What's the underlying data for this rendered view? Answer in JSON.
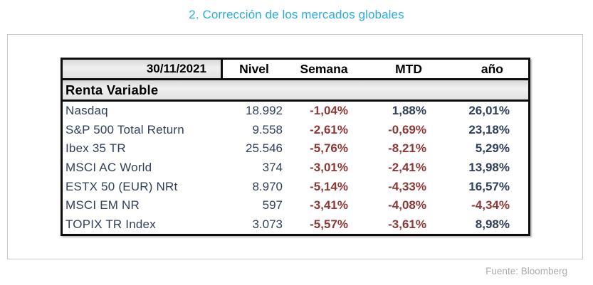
{
  "page": {
    "title": "2. Corrección de los mercados globales",
    "source_note": "Fuente: Bloomberg"
  },
  "colors": {
    "title": "#29abe2",
    "positive_text": "#31405a",
    "negative_text": "#8e3837",
    "section_bg": "#e6e6e6",
    "border": "#0d0d0d"
  },
  "table": {
    "date_header": "30/11/2021",
    "columns": {
      "nivel": "Nivel",
      "semana": "Semana",
      "mtd": "MTD",
      "ano": "año"
    },
    "section": "Renta Variable",
    "rows": [
      {
        "label": "Nasdaq",
        "nivel": "18.992",
        "semana": "-1,04%",
        "mtd": "1,88%",
        "ano": "26,01%"
      },
      {
        "label": "S&P 500 Total Return",
        "nivel": "9.558",
        "semana": "-2,61%",
        "mtd": "-0,69%",
        "ano": "23,18%"
      },
      {
        "label": "Ibex 35 TR",
        "nivel": "25.546",
        "semana": "-5,76%",
        "mtd": "-8,21%",
        "ano": "5,29%"
      },
      {
        "label": "MSCI AC World",
        "nivel": "374",
        "semana": "-3,01%",
        "mtd": "-2,41%",
        "ano": "13,98%"
      },
      {
        "label": "ESTX 50 (EUR) NRt",
        "nivel": "8.970",
        "semana": "-5,14%",
        "mtd": "-4,33%",
        "ano": "16,57%"
      },
      {
        "label": "MSCI EM NR",
        "nivel": "597",
        "semana": "-3,41%",
        "mtd": "-4,08%",
        "ano": "-4,34%"
      },
      {
        "label": "TOPIX TR Index",
        "nivel": "3.073",
        "semana": "-5,57%",
        "mtd": "-3,61%",
        "ano": "8,98%"
      }
    ]
  },
  "chart_data": {
    "type": "table",
    "title": "2. Corrección de los mercados globales",
    "date": "30/11/2021",
    "section": "Renta Variable",
    "columns": [
      "Nivel",
      "Semana",
      "MTD",
      "año"
    ],
    "rows": [
      {
        "name": "Nasdaq",
        "nivel": 18992,
        "semana_pct": -1.04,
        "mtd_pct": 1.88,
        "ano_pct": 26.01
      },
      {
        "name": "S&P 500 Total Return",
        "nivel": 9558,
        "semana_pct": -2.61,
        "mtd_pct": -0.69,
        "ano_pct": 23.18
      },
      {
        "name": "Ibex 35 TR",
        "nivel": 25546,
        "semana_pct": -5.76,
        "mtd_pct": -8.21,
        "ano_pct": 5.29
      },
      {
        "name": "MSCI AC World",
        "nivel": 374,
        "semana_pct": -3.01,
        "mtd_pct": -2.41,
        "ano_pct": 13.98
      },
      {
        "name": "ESTX 50 (EUR) NRt",
        "nivel": 8970,
        "semana_pct": -5.14,
        "mtd_pct": -4.33,
        "ano_pct": 16.57
      },
      {
        "name": "MSCI EM NR",
        "nivel": 597,
        "semana_pct": -3.41,
        "mtd_pct": -4.08,
        "ano_pct": -4.34
      },
      {
        "name": "TOPIX TR Index",
        "nivel": 3073,
        "semana_pct": -5.57,
        "mtd_pct": -3.61,
        "ano_pct": 8.98
      }
    ],
    "source": "Fuente: Bloomberg"
  }
}
